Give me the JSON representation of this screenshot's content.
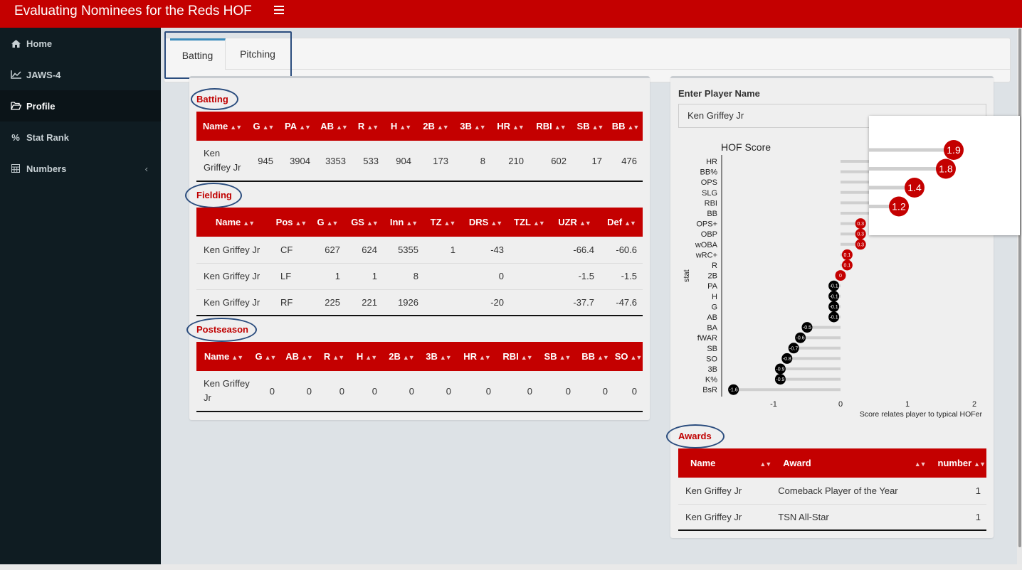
{
  "app": {
    "title": "Evaluating Nominees for the Reds HOF"
  },
  "sidebar": {
    "items": [
      {
        "label": "Home",
        "icon": "home-icon"
      },
      {
        "label": "JAWS-4",
        "icon": "line-chart-icon"
      },
      {
        "label": "Profile",
        "icon": "folder-open-icon",
        "active": true
      },
      {
        "label": "Stat Rank",
        "icon": "percent-icon"
      },
      {
        "label": "Numbers",
        "icon": "table-icon",
        "has_submenu": true
      }
    ]
  },
  "tabs": [
    {
      "label": "Batting",
      "active": true
    },
    {
      "label": "Pitching"
    }
  ],
  "batting": {
    "title": "Batting",
    "columns": [
      "Name",
      "G",
      "PA",
      "AB",
      "R",
      "H",
      "2B",
      "3B",
      "HR",
      "RBI",
      "SB",
      "BB"
    ],
    "rows": [
      {
        "name": "Ken Griffey Jr",
        "G": "945",
        "PA": "3904",
        "AB": "3353",
        "R": "533",
        "H": "904",
        "2B": "173",
        "3B": "8",
        "HR": "210",
        "RBI": "602",
        "SB": "17",
        "BB": "476"
      }
    ]
  },
  "fielding": {
    "title": "Fielding",
    "columns": [
      "Name",
      "Pos",
      "G",
      "GS",
      "Inn",
      "TZ",
      "DRS",
      "TZL",
      "UZR",
      "Def"
    ],
    "rows": [
      {
        "name": "Ken Griffey Jr",
        "Pos": "CF",
        "G": "627",
        "GS": "624",
        "Inn": "5355",
        "TZ": "1",
        "DRS": "-43",
        "TZL": "",
        "UZR": "-66.4",
        "Def": "-60.6"
      },
      {
        "name": "Ken Griffey Jr",
        "Pos": "LF",
        "G": "1",
        "GS": "1",
        "Inn": "8",
        "TZ": "",
        "DRS": "0",
        "TZL": "",
        "UZR": "-1.5",
        "Def": "-1.5"
      },
      {
        "name": "Ken Griffey Jr",
        "Pos": "RF",
        "G": "225",
        "GS": "221",
        "Inn": "1926",
        "TZ": "",
        "DRS": "-20",
        "TZL": "",
        "UZR": "-37.7",
        "Def": "-47.6"
      }
    ]
  },
  "postseason": {
    "title": "Postseason",
    "columns": [
      "Name",
      "G",
      "AB",
      "R",
      "H",
      "2B",
      "3B",
      "HR",
      "RBI",
      "SB",
      "BB",
      "SO"
    ],
    "rows": [
      {
        "name": "Ken Griffey Jr",
        "G": "0",
        "AB": "0",
        "R": "0",
        "H": "0",
        "2B": "0",
        "3B": "0",
        "HR": "0",
        "RBI": "0",
        "SB": "0",
        "BB": "0",
        "SO": "0"
      }
    ]
  },
  "player_input": {
    "label": "Enter Player Name",
    "value": "Ken Griffey Jr"
  },
  "awards": {
    "title": "Awards",
    "columns": [
      "Name",
      "Award",
      "number"
    ],
    "rows": [
      {
        "name": "Ken Griffey Jr",
        "award": "Comeback Player of the Year",
        "number": "1"
      },
      {
        "name": "Ken Griffey Jr",
        "award": "TSN All-Star",
        "number": "1"
      }
    ]
  },
  "chart_data": {
    "type": "lollipop",
    "title": "HOF Score",
    "xlabel": "Score relates player to typical HOFer",
    "ylabel": "stat",
    "xlim": [
      -1.6,
      2.1
    ],
    "xticks": [
      -1,
      0,
      1,
      2
    ],
    "positive_color": "#c40000",
    "negative_color": "#000000",
    "stats": [
      {
        "stat": "HR",
        "value": 1.9
      },
      {
        "stat": "BB%",
        "value": 1.8
      },
      {
        "stat": "OPS",
        "value": 1.4
      },
      {
        "stat": "SLG",
        "value": 1.4
      },
      {
        "stat": "RBI",
        "value": 1.2
      },
      {
        "stat": "BB",
        "value": 1.2
      },
      {
        "stat": "OPS+",
        "value": 0.3
      },
      {
        "stat": "OBP",
        "value": 0.3
      },
      {
        "stat": "wOBA",
        "value": 0.3
      },
      {
        "stat": "wRC+",
        "value": 0.1
      },
      {
        "stat": "R",
        "value": 0.1
      },
      {
        "stat": "2B",
        "value": 0
      },
      {
        "stat": "PA",
        "value": -0.1
      },
      {
        "stat": "H",
        "value": -0.1
      },
      {
        "stat": "G",
        "value": -0.1
      },
      {
        "stat": "AB",
        "value": -0.1
      },
      {
        "stat": "BA",
        "value": -0.5
      },
      {
        "stat": "fWAR",
        "value": -0.6
      },
      {
        "stat": "SB",
        "value": -0.7
      },
      {
        "stat": "SO",
        "value": -0.8
      },
      {
        "stat": "3B",
        "value": -0.9
      },
      {
        "stat": "K%",
        "value": -0.9
      },
      {
        "stat": "BsR",
        "value": -1.6
      }
    ],
    "zoom_values": [
      1.9,
      1.8,
      1.4,
      1.2
    ]
  }
}
